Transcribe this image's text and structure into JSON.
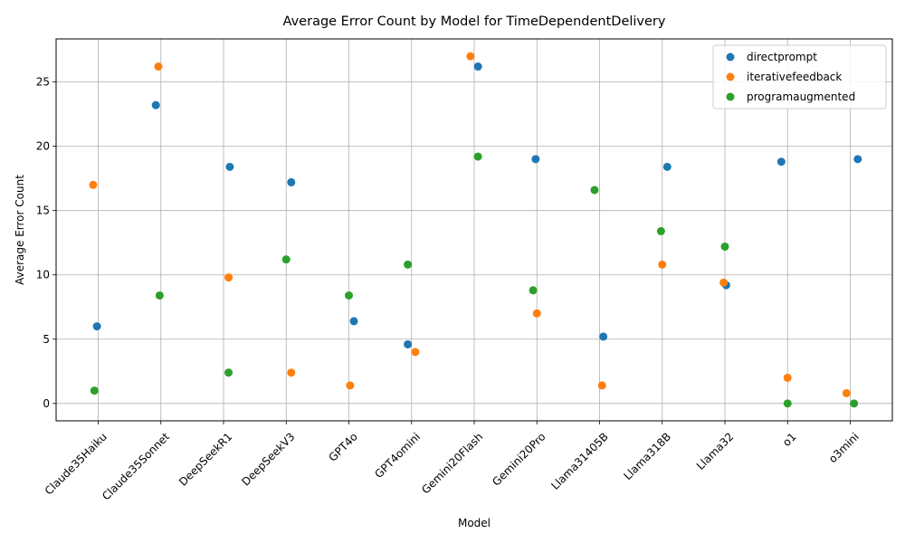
{
  "chart_data": {
    "type": "scatter",
    "title": "Average Error Count by Model for TimeDependentDelivery",
    "xlabel": "Model",
    "ylabel": "Average Error Count",
    "categories": [
      "Claude35Haiku",
      "Claude35Sonnet",
      "DeepSeekR1",
      "DeepSeekV3",
      "GPT4o",
      "GPT4omini",
      "Gemini20Flash",
      "Gemini20Pro",
      "Llama31405B",
      "Llama318B",
      "Llama32",
      "o1",
      "o3mini"
    ],
    "ylim": [
      -1.35,
      28.35
    ],
    "yticks": [
      0,
      5,
      10,
      15,
      20,
      25
    ],
    "grid": true,
    "legend_position": "upper right",
    "series": [
      {
        "name": "directprompt",
        "color": "#1f77b4",
        "points": [
          {
            "category": "Claude35Haiku",
            "jitter": -0.02,
            "y": 6.0
          },
          {
            "category": "Claude35Sonnet",
            "jitter": -0.08,
            "y": 23.2
          },
          {
            "category": "DeepSeekR1",
            "jitter": 0.1,
            "y": 18.4
          },
          {
            "category": "DeepSeekV3",
            "jitter": 0.08,
            "y": 17.2
          },
          {
            "category": "GPT4o",
            "jitter": 0.08,
            "y": 6.4
          },
          {
            "category": "GPT4omini",
            "jitter": -0.06,
            "y": 4.6
          },
          {
            "category": "Gemini20Flash",
            "jitter": 0.06,
            "y": 26.2
          },
          {
            "category": "Gemini20Pro",
            "jitter": -0.02,
            "y": 19.0
          },
          {
            "category": "Llama31405B",
            "jitter": 0.06,
            "y": 5.2
          },
          {
            "category": "Llama318B",
            "jitter": 0.08,
            "y": 18.4
          },
          {
            "category": "Llama32",
            "jitter": 0.02,
            "y": 9.2
          },
          {
            "category": "o1",
            "jitter": -0.1,
            "y": 18.8
          },
          {
            "category": "o3mini",
            "jitter": 0.12,
            "y": 19.0
          }
        ]
      },
      {
        "name": "iterativefeedback",
        "color": "#ff7f0e",
        "points": [
          {
            "category": "Claude35Haiku",
            "jitter": -0.08,
            "y": 17.0
          },
          {
            "category": "Claude35Sonnet",
            "jitter": -0.04,
            "y": 26.2
          },
          {
            "category": "DeepSeekR1",
            "jitter": 0.08,
            "y": 9.8
          },
          {
            "category": "DeepSeekV3",
            "jitter": 0.08,
            "y": 2.4
          },
          {
            "category": "GPT4o",
            "jitter": 0.02,
            "y": 1.4
          },
          {
            "category": "GPT4omini",
            "jitter": 0.06,
            "y": 4.0
          },
          {
            "category": "Gemini20Flash",
            "jitter": -0.06,
            "y": 27.0
          },
          {
            "category": "Gemini20Pro",
            "jitter": 0.0,
            "y": 7.0
          },
          {
            "category": "Llama31405B",
            "jitter": 0.04,
            "y": 1.4
          },
          {
            "category": "Llama318B",
            "jitter": 0.0,
            "y": 10.8
          },
          {
            "category": "Llama32",
            "jitter": -0.02,
            "y": 9.4
          },
          {
            "category": "o1",
            "jitter": 0.0,
            "y": 2.0
          },
          {
            "category": "o3mini",
            "jitter": -0.06,
            "y": 0.8
          }
        ]
      },
      {
        "name": "programaugmented",
        "color": "#2ca02c",
        "points": [
          {
            "category": "Claude35Haiku",
            "jitter": -0.06,
            "y": 1.0
          },
          {
            "category": "Claude35Sonnet",
            "jitter": -0.02,
            "y": 8.4
          },
          {
            "category": "DeepSeekR1",
            "jitter": 0.08,
            "y": 2.4
          },
          {
            "category": "DeepSeekV3",
            "jitter": 0.0,
            "y": 11.2
          },
          {
            "category": "GPT4o",
            "jitter": 0.0,
            "y": 8.4
          },
          {
            "category": "GPT4omini",
            "jitter": -0.06,
            "y": 10.8
          },
          {
            "category": "Gemini20Flash",
            "jitter": 0.06,
            "y": 19.2
          },
          {
            "category": "Gemini20Pro",
            "jitter": -0.06,
            "y": 8.8
          },
          {
            "category": "Llama31405B",
            "jitter": -0.08,
            "y": 16.6
          },
          {
            "category": "Llama318B",
            "jitter": -0.02,
            "y": 13.4
          },
          {
            "category": "Llama32",
            "jitter": 0.0,
            "y": 12.2
          },
          {
            "category": "o1",
            "jitter": 0.0,
            "y": 0.0
          },
          {
            "category": "o3mini",
            "jitter": 0.06,
            "y": 0.0
          }
        ]
      }
    ]
  }
}
